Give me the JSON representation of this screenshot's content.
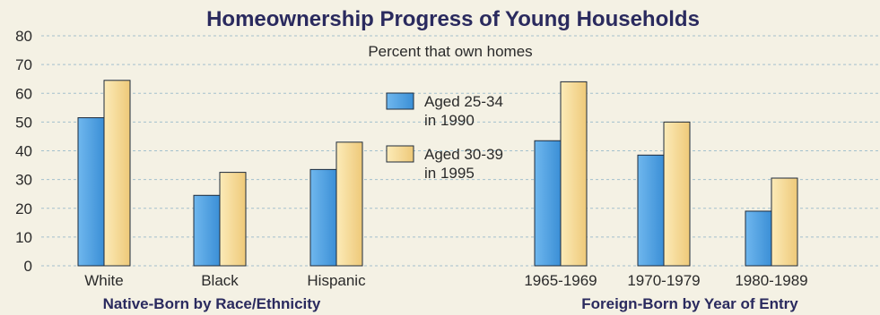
{
  "chart_data": {
    "type": "bar",
    "title": "Homeownership Progress of Young Households",
    "subtitle": "Percent that own homes",
    "ylim": [
      0,
      80
    ],
    "yticks": [
      0,
      10,
      20,
      30,
      40,
      50,
      60,
      70,
      80
    ],
    "categories": [
      "White",
      "Black",
      "Hispanic",
      "1965-1969",
      "1970-1979",
      "1980-1989"
    ],
    "groups": [
      {
        "label": "Native-Born by Race/Ethnicity",
        "categories": [
          "White",
          "Black",
          "Hispanic"
        ]
      },
      {
        "label": "Foreign-Born by Year of Entry",
        "categories": [
          "1965-1969",
          "1970-1979",
          "1980-1989"
        ]
      }
    ],
    "series": [
      {
        "name": "Aged 25-34 in 1990",
        "legend_lines": [
          "Aged 25-34",
          "in 1990"
        ],
        "color": "#4a9fe0",
        "values": [
          51.5,
          24.5,
          33.5,
          43.5,
          38.5,
          19
        ]
      },
      {
        "name": "Aged 30-39 in 1995",
        "legend_lines": [
          "Aged 30-39",
          "in 1995"
        ],
        "color": "#f6d894",
        "values": [
          64.5,
          32.5,
          43,
          64,
          50,
          30.5
        ]
      }
    ],
    "grid": true,
    "legend_position": "center"
  }
}
